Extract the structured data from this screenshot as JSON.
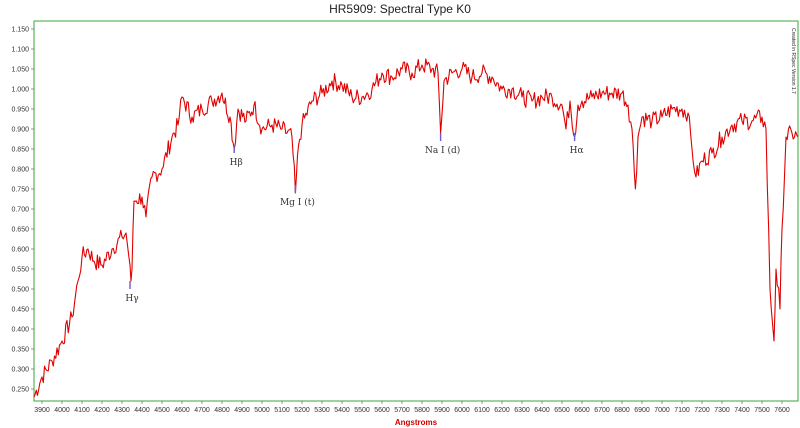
{
  "chart_data": {
    "type": "line",
    "title": "HR5909: Spectral Type K0",
    "xlabel": "Angstroms",
    "ylabel": "",
    "side_note": "Created in RSpec Version 1.7",
    "xlim": [
      3860,
      7680
    ],
    "ylim": [
      0.22,
      1.17
    ],
    "x_ticks": [
      3900,
      4000,
      4100,
      4200,
      4300,
      4400,
      4500,
      4600,
      4700,
      4800,
      4900,
      5000,
      5100,
      5200,
      5300,
      5400,
      5500,
      5600,
      5700,
      5800,
      5900,
      6000,
      6100,
      6200,
      6300,
      6400,
      6500,
      6600,
      6700,
      6800,
      6900,
      7000,
      7100,
      7200,
      7300,
      7400,
      7500,
      7600
    ],
    "y_ticks": [
      "0.250",
      "0.300",
      "0.350",
      "0.400",
      "0.450",
      "0.500",
      "0.550",
      "0.600",
      "0.650",
      "0.700",
      "0.750",
      "0.800",
      "0.850",
      "0.900",
      "0.950",
      "1.000",
      "1.050",
      "1.100",
      "1.150"
    ],
    "grid": false,
    "series": [
      {
        "color": "#e00000",
        "x": [
          3860,
          3900,
          3950,
          4000,
          4050,
          4080,
          4100,
          4130,
          4160,
          4200,
          4250,
          4300,
          4320,
          4340,
          4345,
          4350,
          4360,
          4400,
          4420,
          4450,
          4500,
          4550,
          4580,
          4600,
          4650,
          4700,
          4750,
          4800,
          4840,
          4861,
          4880,
          4920,
          4960,
          5000,
          5050,
          5100,
          5150,
          5167,
          5183,
          5200,
          5250,
          5300,
          5350,
          5400,
          5450,
          5500,
          5550,
          5600,
          5650,
          5700,
          5750,
          5800,
          5850,
          5880,
          5893,
          5910,
          5950,
          6000,
          6050,
          6100,
          6150,
          6200,
          6250,
          6300,
          6350,
          6400,
          6450,
          6500,
          6520,
          6540,
          6563,
          6580,
          6600,
          6650,
          6700,
          6750,
          6800,
          6830,
          6850,
          6867,
          6880,
          6900,
          6950,
          7000,
          7050,
          7100,
          7130,
          7150,
          7170,
          7200,
          7250,
          7300,
          7350,
          7400,
          7450,
          7500,
          7520,
          7540,
          7560,
          7570,
          7590,
          7600,
          7620,
          7650,
          7680
        ],
        "y": [
          0.23,
          0.28,
          0.32,
          0.37,
          0.43,
          0.52,
          0.58,
          0.6,
          0.57,
          0.56,
          0.6,
          0.63,
          0.64,
          0.56,
          0.52,
          0.55,
          0.72,
          0.73,
          0.68,
          0.78,
          0.8,
          0.88,
          0.91,
          0.98,
          0.93,
          0.95,
          0.97,
          0.99,
          0.93,
          0.85,
          0.95,
          0.92,
          0.96,
          0.9,
          0.91,
          0.9,
          0.88,
          0.74,
          0.86,
          0.91,
          0.97,
          0.99,
          1.02,
          1.01,
          0.98,
          0.98,
          1.0,
          1.04,
          1.03,
          1.05,
          1.04,
          1.06,
          1.05,
          1.04,
          0.89,
          1.02,
          1.04,
          1.05,
          1.03,
          1.04,
          1.03,
          1.0,
          1.0,
          0.98,
          0.97,
          0.98,
          0.98,
          0.96,
          0.9,
          0.97,
          0.88,
          0.96,
          0.97,
          0.98,
          0.99,
          0.99,
          0.99,
          0.96,
          0.9,
          0.75,
          0.88,
          0.93,
          0.92,
          0.93,
          0.95,
          0.95,
          0.94,
          0.85,
          0.78,
          0.82,
          0.84,
          0.88,
          0.91,
          0.92,
          0.92,
          0.93,
          0.9,
          0.5,
          0.37,
          0.55,
          0.45,
          0.65,
          0.88,
          0.89,
          0.88
        ]
      }
    ],
    "annotations": [
      {
        "label": "Hγ",
        "x": 4340,
        "line_top": 0.52,
        "line_bottom": 0.5,
        "text_y": 0.47
      },
      {
        "label": "Hβ",
        "x": 4861,
        "line_top": 0.86,
        "line_bottom": 0.84,
        "text_y": 0.81
      },
      {
        "label": "Mg I (t)",
        "x": 5167,
        "line_top": 0.76,
        "line_bottom": 0.74,
        "text_y": 0.71
      },
      {
        "label": "Na I (d)",
        "x": 5893,
        "line_top": 0.89,
        "line_bottom": 0.87,
        "text_y": 0.84
      },
      {
        "label": "Hα",
        "x": 6563,
        "line_top": 0.89,
        "line_bottom": 0.87,
        "text_y": 0.84
      }
    ]
  }
}
